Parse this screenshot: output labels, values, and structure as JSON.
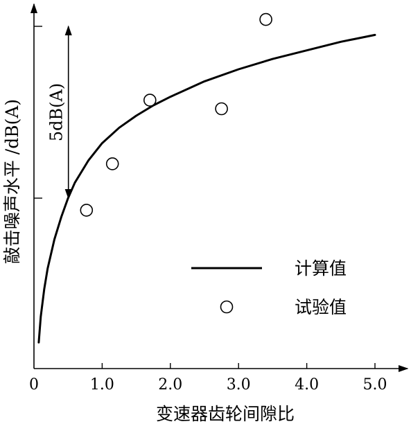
{
  "chart_data": {
    "type": "line",
    "xlabel": "变速器齿轮间隙比",
    "ylabel": "敲击噪声水平 /dB(A)",
    "xlim": [
      0,
      5.2
    ],
    "x_ticks": [
      {
        "value": 0,
        "label": "0"
      },
      {
        "value": 1,
        "label": "1.0"
      },
      {
        "value": 2,
        "label": "2.0"
      },
      {
        "value": 3,
        "label": "3.0"
      },
      {
        "value": 4,
        "label": "4.0"
      },
      {
        "value": 5,
        "label": "5.0"
      }
    ],
    "y_unit_db_per_tick": 5,
    "ylim": [
      -4.2,
      5.5
    ],
    "y_ticks": [
      0,
      5
    ],
    "annotation": {
      "text": "5dB(A)",
      "x": 0.5,
      "y_from": 0,
      "y_to": 5
    },
    "series": [
      {
        "name": "计算值",
        "kind": "line",
        "x": [
          0.07,
          0.1,
          0.15,
          0.2,
          0.3,
          0.4,
          0.5,
          0.6,
          0.8,
          1.0,
          1.25,
          1.5,
          1.75,
          2.0,
          2.5,
          3.0,
          3.5,
          4.0,
          4.5,
          5.0
        ],
        "y": [
          -4.2,
          -3.45,
          -2.65,
          -2.05,
          -1.2,
          -0.55,
          0.0,
          0.45,
          1.1,
          1.6,
          2.05,
          2.4,
          2.7,
          2.95,
          3.4,
          3.75,
          4.05,
          4.3,
          4.55,
          4.75
        ]
      },
      {
        "name": "试验值",
        "kind": "scatter",
        "x": [
          0.77,
          1.15,
          1.7,
          2.75,
          3.4
        ],
        "y": [
          -0.35,
          1.0,
          2.85,
          2.6,
          5.2
        ]
      }
    ],
    "legend": {
      "placement": "lower-right"
    }
  }
}
